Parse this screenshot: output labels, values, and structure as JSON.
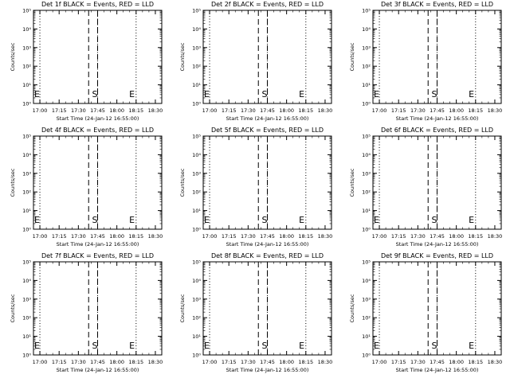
{
  "figure": {
    "xlabel": "Start Time (24-Jan-12 16:55:00)",
    "ylabel": "Counts/sec",
    "x_tick_labels": [
      "17:00",
      "17:15",
      "17:30",
      "17:45",
      "18:00",
      "18:15",
      "18:30"
    ],
    "y_tick_labels": [
      "10⁰",
      "10¹",
      "10²",
      "10³",
      "10⁴",
      "10⁵"
    ],
    "colors": {
      "events": "#000000",
      "lld": "#ff0000",
      "background": "#ffffff",
      "axes": "#000000"
    }
  },
  "chart_data": [
    {
      "type": "line",
      "title": "Det 1f BLACK = Events, RED = LLD",
      "xlabel": "Start Time (24-Jan-12 16:55:00)",
      "ylabel": "Counts/sec",
      "xlim": [
        "16:55",
        "18:35"
      ],
      "ylim": [
        1,
        100000
      ],
      "yscale": "log",
      "x_ticks": [
        "17:00",
        "17:15",
        "17:30",
        "17:45",
        "18:00",
        "18:15",
        "18:30"
      ],
      "dotted_vlines": [
        "17:00",
        "17:45",
        "18:15"
      ],
      "dashed_vlines": [
        "17:38",
        "17:45"
      ],
      "markers": [
        {
          "label": "E",
          "x": "16:55"
        },
        {
          "label": "S",
          "x": "17:40"
        },
        {
          "label": "E",
          "x": "18:09"
        }
      ],
      "series": []
    },
    {
      "type": "line",
      "title": "Det 2f BLACK = Events, RED = LLD",
      "xlabel": "Start Time (24-Jan-12 16:55:00)",
      "ylabel": "Counts/sec",
      "xlim": [
        "16:55",
        "18:35"
      ],
      "ylim": [
        1,
        100000
      ],
      "yscale": "log",
      "x_ticks": [
        "17:00",
        "17:15",
        "17:30",
        "17:45",
        "18:00",
        "18:15",
        "18:30"
      ],
      "dotted_vlines": [
        "17:00",
        "17:45",
        "18:15"
      ],
      "dashed_vlines": [
        "17:38",
        "17:45"
      ],
      "markers": [
        {
          "label": "E",
          "x": "16:55"
        },
        {
          "label": "S",
          "x": "17:40"
        },
        {
          "label": "E",
          "x": "18:09"
        }
      ],
      "series": []
    },
    {
      "type": "line",
      "title": "Det 3f BLACK = Events, RED = LLD",
      "xlabel": "Start Time (24-Jan-12 16:55:00)",
      "ylabel": "Counts/sec",
      "xlim": [
        "16:55",
        "18:35"
      ],
      "ylim": [
        1,
        100000
      ],
      "yscale": "log",
      "x_ticks": [
        "17:00",
        "17:15",
        "17:30",
        "17:45",
        "18:00",
        "18:15",
        "18:30"
      ],
      "dotted_vlines": [
        "17:00",
        "17:45",
        "18:15"
      ],
      "dashed_vlines": [
        "17:38",
        "17:45"
      ],
      "markers": [
        {
          "label": "E",
          "x": "16:55"
        },
        {
          "label": "S",
          "x": "17:40"
        },
        {
          "label": "E",
          "x": "18:09"
        }
      ],
      "series": []
    },
    {
      "type": "line",
      "title": "Det 4f BLACK = Events, RED = LLD",
      "xlabel": "Start Time (24-Jan-12 16:55:00)",
      "ylabel": "Counts/sec",
      "xlim": [
        "16:55",
        "18:35"
      ],
      "ylim": [
        1,
        100000
      ],
      "yscale": "log",
      "x_ticks": [
        "17:00",
        "17:15",
        "17:30",
        "17:45",
        "18:00",
        "18:15",
        "18:30"
      ],
      "dotted_vlines": [
        "17:00",
        "17:45",
        "18:15"
      ],
      "dashed_vlines": [
        "17:38",
        "17:45"
      ],
      "markers": [
        {
          "label": "E",
          "x": "16:55"
        },
        {
          "label": "S",
          "x": "17:40"
        },
        {
          "label": "E",
          "x": "18:09"
        }
      ],
      "series": []
    },
    {
      "type": "line",
      "title": "Det 5f BLACK = Events, RED = LLD",
      "xlabel": "Start Time (24-Jan-12 16:55:00)",
      "ylabel": "Counts/sec",
      "xlim": [
        "16:55",
        "18:35"
      ],
      "ylim": [
        1,
        100000
      ],
      "yscale": "log",
      "x_ticks": [
        "17:00",
        "17:15",
        "17:30",
        "17:45",
        "18:00",
        "18:15",
        "18:30"
      ],
      "dotted_vlines": [
        "17:00",
        "17:45",
        "18:15"
      ],
      "dashed_vlines": [
        "17:38",
        "17:45"
      ],
      "markers": [
        {
          "label": "E",
          "x": "16:55"
        },
        {
          "label": "S",
          "x": "17:40"
        },
        {
          "label": "E",
          "x": "18:09"
        }
      ],
      "series": []
    },
    {
      "type": "line",
      "title": "Det 6f BLACK = Events, RED = LLD",
      "xlabel": "Start Time (24-Jan-12 16:55:00)",
      "ylabel": "Counts/sec",
      "xlim": [
        "16:55",
        "18:35"
      ],
      "ylim": [
        1,
        100000
      ],
      "yscale": "log",
      "x_ticks": [
        "17:00",
        "17:15",
        "17:30",
        "17:45",
        "18:00",
        "18:15",
        "18:30"
      ],
      "dotted_vlines": [
        "17:00",
        "17:45",
        "18:15"
      ],
      "dashed_vlines": [
        "17:38",
        "17:45"
      ],
      "markers": [
        {
          "label": "E",
          "x": "16:55"
        },
        {
          "label": "S",
          "x": "17:40"
        },
        {
          "label": "E",
          "x": "18:09"
        }
      ],
      "series": []
    },
    {
      "type": "line",
      "title": "Det 7f BLACK = Events, RED = LLD",
      "xlabel": "Start Time (24-Jan-12 16:55:00)",
      "ylabel": "Counts/sec",
      "xlim": [
        "16:55",
        "18:35"
      ],
      "ylim": [
        1,
        100000
      ],
      "yscale": "log",
      "x_ticks": [
        "17:00",
        "17:15",
        "17:30",
        "17:45",
        "18:00",
        "18:15",
        "18:30"
      ],
      "dotted_vlines": [
        "17:00",
        "17:45",
        "18:15"
      ],
      "dashed_vlines": [
        "17:38",
        "17:45"
      ],
      "markers": [
        {
          "label": "E",
          "x": "16:55"
        },
        {
          "label": "S",
          "x": "17:40"
        },
        {
          "label": "E",
          "x": "18:09"
        }
      ],
      "series": []
    },
    {
      "type": "line",
      "title": "Det 8f BLACK = Events, RED = LLD",
      "xlabel": "Start Time (24-Jan-12 16:55:00)",
      "ylabel": "Counts/sec",
      "xlim": [
        "16:55",
        "18:35"
      ],
      "ylim": [
        1,
        100000
      ],
      "yscale": "log",
      "x_ticks": [
        "17:00",
        "17:15",
        "17:30",
        "17:45",
        "18:00",
        "18:15",
        "18:30"
      ],
      "dotted_vlines": [
        "17:00",
        "17:45",
        "18:15"
      ],
      "dashed_vlines": [
        "17:38",
        "17:45"
      ],
      "markers": [
        {
          "label": "E",
          "x": "16:55"
        },
        {
          "label": "S",
          "x": "17:40"
        },
        {
          "label": "E",
          "x": "18:09"
        }
      ],
      "series": []
    },
    {
      "type": "line",
      "title": "Det 9f BLACK = Events, RED = LLD",
      "xlabel": "Start Time (24-Jan-12 16:55:00)",
      "ylabel": "Counts/sec",
      "xlim": [
        "16:55",
        "18:35"
      ],
      "ylim": [
        1,
        100000
      ],
      "yscale": "log",
      "x_ticks": [
        "17:00",
        "17:15",
        "17:30",
        "17:45",
        "18:00",
        "18:15",
        "18:30"
      ],
      "dotted_vlines": [
        "17:00",
        "17:45",
        "18:15"
      ],
      "dashed_vlines": [
        "17:38",
        "17:45"
      ],
      "markers": [
        {
          "label": "E",
          "x": "16:55"
        },
        {
          "label": "S",
          "x": "17:40"
        },
        {
          "label": "E",
          "x": "18:09"
        }
      ],
      "series": []
    }
  ]
}
